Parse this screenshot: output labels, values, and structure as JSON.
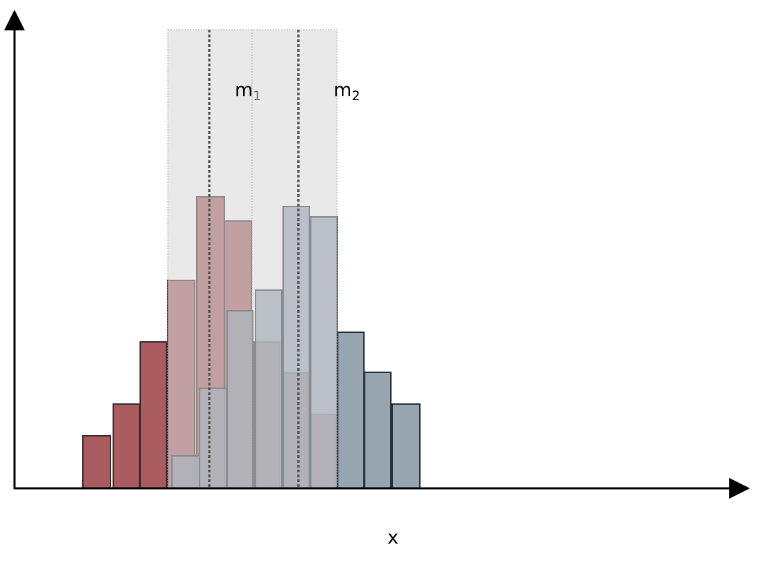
{
  "markers": [
    {
      "base": "m",
      "sub": "1"
    },
    {
      "base": "m",
      "sub": "2"
    }
  ],
  "axis": {
    "x_label": "x"
  }
}
